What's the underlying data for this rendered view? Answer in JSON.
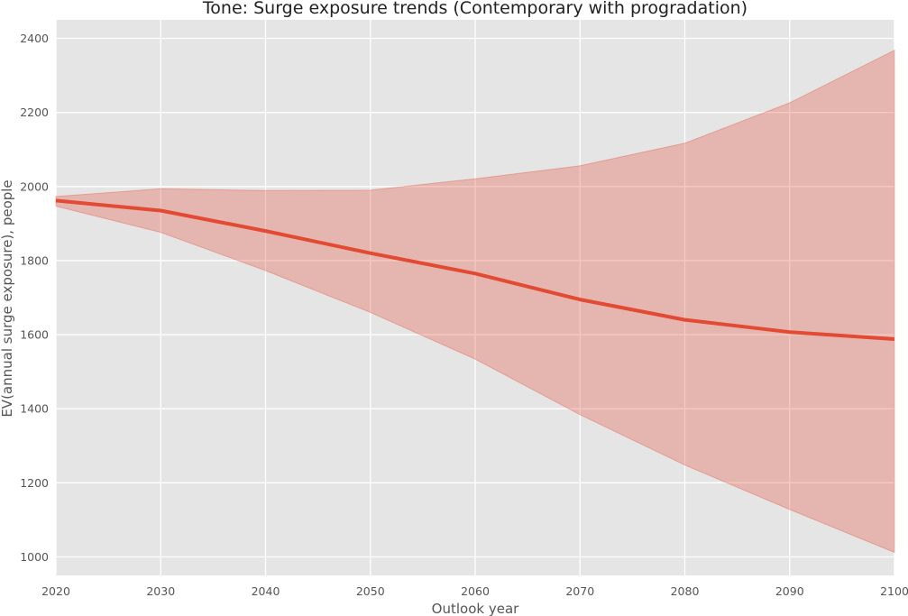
{
  "chart_data": {
    "type": "area",
    "title": "Tone: Surge exposure trends (Contemporary with progradation)",
    "xlabel": "Outlook year",
    "ylabel": "EV(annual surge exposure), people",
    "x": [
      2020,
      2030,
      2040,
      2050,
      2060,
      2070,
      2080,
      2090,
      2100
    ],
    "xlim": [
      2020,
      2100
    ],
    "ylim": [
      950,
      2450
    ],
    "xticks": [
      2020,
      2030,
      2040,
      2050,
      2060,
      2070,
      2080,
      2090,
      2100
    ],
    "yticks": [
      1000,
      1200,
      1400,
      1600,
      1800,
      2000,
      2200,
      2400
    ],
    "grid": true,
    "series": [
      {
        "role": "mean",
        "values": [
          1962,
          1935,
          1880,
          1820,
          1765,
          1695,
          1640,
          1607,
          1588
        ]
      },
      {
        "role": "band-upper",
        "values": [
          1973,
          1994,
          1989,
          1990,
          2021,
          2056,
          2117,
          2226,
          2368
        ]
      },
      {
        "role": "band-lower",
        "values": [
          1947,
          1876,
          1773,
          1660,
          1534,
          1384,
          1248,
          1128,
          1012
        ]
      }
    ],
    "colors": {
      "line": "#e24a33",
      "band": "#e24a33",
      "plot_background": "#e5e5e5",
      "grid": "#ffffff"
    }
  }
}
